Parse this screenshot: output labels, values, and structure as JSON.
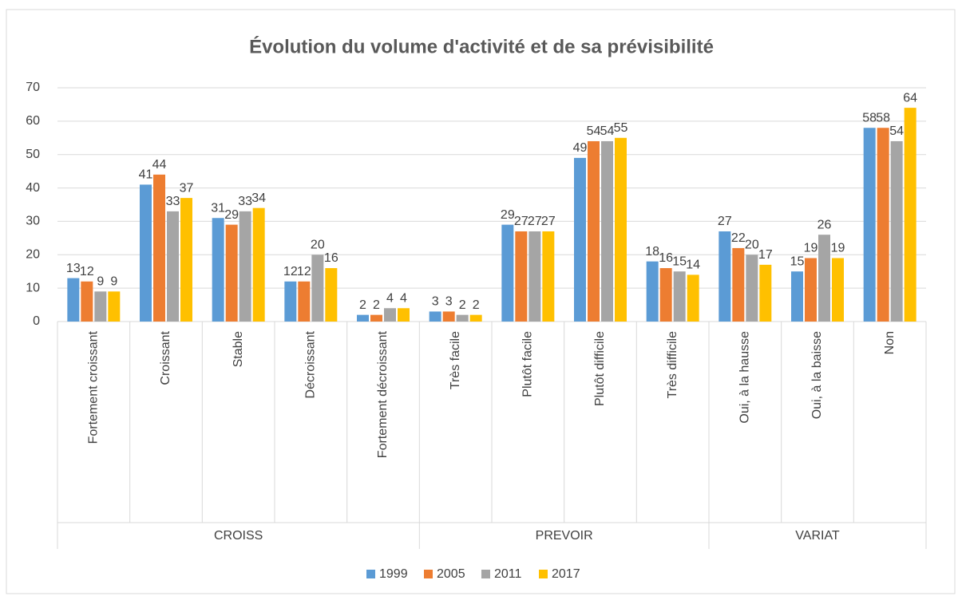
{
  "chart_data": {
    "type": "bar",
    "title": "Évolution du volume d'activité et de sa prévisibilité",
    "groups": [
      {
        "name": "CROISS",
        "categories": [
          "Fortement croissant",
          "Croissant",
          "Stable",
          "Décroissant",
          "Fortement décroissant"
        ]
      },
      {
        "name": "PREVOIR",
        "categories": [
          "Très facile",
          "Plutôt facile",
          "Plutôt difficile",
          "Très difficile"
        ]
      },
      {
        "name": "VARIAT",
        "categories": [
          "Oui, à la hausse",
          "Oui, à la baisse",
          "Non"
        ]
      }
    ],
    "series": [
      {
        "name": "1999",
        "color": "#5b9bd5",
        "values": [
          13,
          41,
          31,
          12,
          2,
          3,
          29,
          49,
          18,
          27,
          15,
          58
        ]
      },
      {
        "name": "2005",
        "color": "#ed7d31",
        "values": [
          12,
          44,
          29,
          12,
          2,
          3,
          27,
          54,
          16,
          22,
          19,
          58
        ]
      },
      {
        "name": "2011",
        "color": "#a5a5a5",
        "values": [
          9,
          33,
          33,
          20,
          4,
          2,
          27,
          54,
          15,
          20,
          26,
          54
        ]
      },
      {
        "name": "2017",
        "color": "#ffc000",
        "values": [
          9,
          37,
          34,
          16,
          4,
          2,
          27,
          55,
          14,
          17,
          19,
          64
        ]
      }
    ],
    "ylim": [
      0,
      70
    ],
    "yticks": [
      0,
      10,
      20,
      30,
      40,
      50,
      60,
      70
    ],
    "grid": true,
    "legend": "bottom"
  }
}
